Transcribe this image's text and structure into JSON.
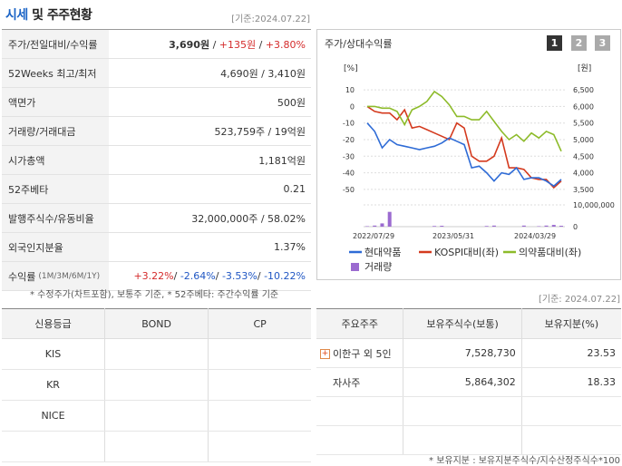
{
  "header": {
    "title_a": "시세",
    "title_b": " 및 ",
    "title_c": "주주현황",
    "date": "[기준:2024.07.22]"
  },
  "price_table": [
    {
      "key": "주가/전일대비/수익률",
      "parts": [
        {
          "t": "3,690원",
          "c": "",
          "b": true
        },
        {
          "t": " / ",
          "c": ""
        },
        {
          "t": "+135원",
          "c": "red"
        },
        {
          "t": " / ",
          "c": ""
        },
        {
          "t": "+3.80%",
          "c": "red"
        }
      ]
    },
    {
      "key": "52Weeks 최고/최저",
      "parts": [
        {
          "t": "4,690원 / 3,410원",
          "c": ""
        }
      ]
    },
    {
      "key": "액면가",
      "parts": [
        {
          "t": "500원",
          "c": ""
        }
      ]
    },
    {
      "key": "거래량/거래대금",
      "parts": [
        {
          "t": "523,759주 / 19억원",
          "c": ""
        }
      ]
    },
    {
      "key": "시가총액",
      "parts": [
        {
          "t": "1,181억원",
          "c": ""
        }
      ]
    },
    {
      "key": "52주베타",
      "parts": [
        {
          "t": "0.21",
          "c": ""
        }
      ]
    },
    {
      "key": "발행주식수/유동비율",
      "parts": [
        {
          "t": "32,000,000주 / 58.02%",
          "c": ""
        }
      ]
    },
    {
      "key": "외국인지분율",
      "parts": [
        {
          "t": "1.37%",
          "c": ""
        }
      ]
    },
    {
      "key": "수익률",
      "sub": "(1M/3M/6M/1Y)",
      "parts": [
        {
          "t": "+3.22%",
          "c": "red"
        },
        {
          "t": "/ ",
          "c": ""
        },
        {
          "t": "-2.64%",
          "c": "blue"
        },
        {
          "t": "/ ",
          "c": ""
        },
        {
          "t": "-3.53%",
          "c": "blue"
        },
        {
          "t": "/ ",
          "c": ""
        },
        {
          "t": "-10.22%",
          "c": "blue"
        }
      ]
    }
  ],
  "note": "* 수정주가(차트포함), 보통주 기준, * 52주베타: 주간수익률 기준",
  "chart_panel": {
    "title": "주가/상대수익률",
    "pages": [
      "1",
      "2",
      "3"
    ]
  },
  "chart_data": {
    "type": "line",
    "left_unit": "[%]",
    "right_unit": "[원]",
    "ylim_left": [
      -55,
      15
    ],
    "ylim_right": [
      3250,
      6750
    ],
    "left_ticks": [
      "10",
      "0",
      "-10",
      "-20",
      "-30",
      "-40",
      "-50"
    ],
    "right_ticks": [
      "6,500",
      "6,000",
      "5,500",
      "5,000",
      "4,500",
      "4,000",
      "3,500"
    ],
    "volume_ticks": [
      "10,000,000",
      "0"
    ],
    "x_ticks": [
      "2022/07/29",
      "2023/05/31",
      "2024/03/29"
    ],
    "series": [
      {
        "name": "현대약품",
        "color": "#2e6bd6",
        "values": [
          -10,
          -15,
          -25,
          -20,
          -23,
          -24,
          -25,
          -26,
          -25,
          -24,
          -22,
          -19,
          -21,
          -23,
          -37,
          -36,
          -40,
          -45,
          -40,
          -41,
          -37,
          -44,
          -43,
          -43,
          -45,
          -48,
          -44
        ]
      },
      {
        "name": "KOSPI대비(좌)",
        "color": "#d43a1e",
        "values": [
          0,
          -3,
          -4,
          -4,
          -8,
          -2,
          -13,
          -12,
          -14,
          -16,
          -18,
          -20,
          -10,
          -13,
          -30,
          -33,
          -33,
          -30,
          -19,
          -37,
          -37,
          -38,
          -43,
          -44,
          -44,
          -49,
          -45
        ]
      },
      {
        "name": "의약품대비(좌)",
        "color": "#8dbb2a",
        "values": [
          0,
          0,
          -1,
          -1,
          -3,
          -11,
          -2,
          0,
          3,
          9,
          6,
          1,
          -6,
          -6,
          -8,
          -8,
          -3,
          -9,
          -15,
          -20,
          -17,
          -21,
          -16,
          -19,
          -15,
          -17,
          -27
        ]
      },
      {
        "name": "거래량",
        "color": "#9b6bd0",
        "values": [
          0.2,
          0.5,
          1.5,
          6.8,
          0,
          0,
          0,
          0,
          0,
          0.3,
          0.4,
          0,
          0,
          0,
          0,
          0,
          0.3,
          0.5,
          0,
          0,
          0,
          0.5,
          0,
          0.2,
          0.5,
          0.8,
          0.4
        ]
      }
    ]
  },
  "credit": {
    "headers": [
      "신용등급",
      "BOND",
      "CP"
    ],
    "rows": [
      [
        "KIS",
        "",
        ""
      ],
      [
        "KR",
        "",
        ""
      ],
      [
        "NICE",
        "",
        ""
      ],
      [
        "",
        "",
        ""
      ]
    ]
  },
  "shareholders": {
    "date": "[기준: 2024.07.22]",
    "headers": [
      "주요주주",
      "보유주식수(보통)",
      "보유지분(%)"
    ],
    "rows": [
      [
        "이한구 외 5인",
        "7,528,730",
        "23.53"
      ],
      [
        "자사주",
        "5,864,302",
        "18.33"
      ],
      [
        "",
        "",
        ""
      ],
      [
        "",
        "",
        ""
      ]
    ]
  },
  "footnote": "* 보유지분 : 보유지분주식수/지수산정주식수*100"
}
